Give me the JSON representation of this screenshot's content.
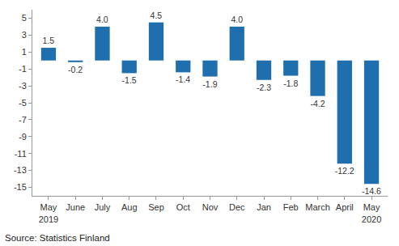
{
  "chart_data": {
    "type": "bar",
    "categories": [
      "May 2019",
      "June",
      "July",
      "Aug",
      "Sep",
      "Oct",
      "Nov",
      "Dec",
      "Jan",
      "Feb",
      "March",
      "April",
      "May 2020"
    ],
    "values": [
      1.5,
      -0.2,
      4.0,
      -1.5,
      4.5,
      -1.4,
      -1.9,
      4.0,
      -2.3,
      -1.8,
      -4.2,
      -12.2,
      -14.6
    ],
    "value_labels": [
      "1.5",
      "-0.2",
      "4.0",
      "-1.5",
      "4.5",
      "-1.4",
      "-1.9",
      "4.0",
      "-2.3",
      "-1.8",
      "-4.2",
      "-12.2",
      "-14.6"
    ],
    "color": "#1f6ead",
    "ylim": [
      -16,
      6
    ],
    "yticks": [
      -15,
      -13,
      -11,
      -9,
      -7,
      -5,
      -3,
      -1,
      1,
      3,
      5
    ],
    "grid": false,
    "data_labels": true,
    "source": "Source: Statistics Finland"
  }
}
